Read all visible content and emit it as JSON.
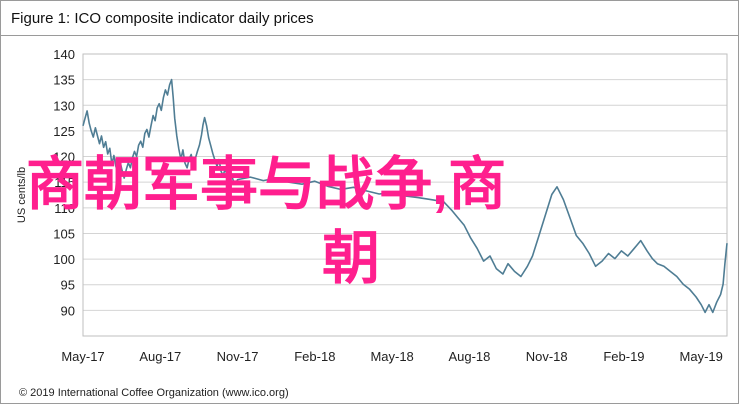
{
  "title": "Figure 1: ICO composite indicator daily prices",
  "footer": "© 2019 International Coffee Organization (www.ico.org)",
  "overlay_text": {
    "line1": "商朝军事与战争,商",
    "line2": "朝",
    "color": "#ff1f8e"
  },
  "chart_data": {
    "type": "line",
    "title": "Figure 1: ICO composite indicator daily prices",
    "xlabel": "",
    "ylabel": "US cents/lb",
    "ylim": [
      85,
      140
    ],
    "yticks": [
      90,
      95,
      100,
      105,
      110,
      115,
      120,
      125,
      130,
      135,
      140
    ],
    "xticks": [
      {
        "label": "May-17",
        "t": 0
      },
      {
        "label": "Aug-17",
        "t": 3
      },
      {
        "label": "Nov-17",
        "t": 6
      },
      {
        "label": "Feb-18",
        "t": 9
      },
      {
        "label": "May-18",
        "t": 12
      },
      {
        "label": "Aug-18",
        "t": 15
      },
      {
        "label": "Nov-18",
        "t": 18
      },
      {
        "label": "Feb-19",
        "t": 21
      },
      {
        "label": "May-19",
        "t": 24
      }
    ],
    "grid": true,
    "line_color": "#4f7d94",
    "series": [
      {
        "points": [
          [
            0.0,
            126.0
          ],
          [
            0.08,
            127.5
          ],
          [
            0.16,
            128.9
          ],
          [
            0.24,
            126.5
          ],
          [
            0.32,
            125.0
          ],
          [
            0.4,
            123.8
          ],
          [
            0.48,
            125.6
          ],
          [
            0.56,
            124.1
          ],
          [
            0.64,
            122.5
          ],
          [
            0.72,
            124.0
          ],
          [
            0.8,
            121.8
          ],
          [
            0.88,
            122.9
          ],
          [
            0.96,
            120.5
          ],
          [
            1.04,
            121.6
          ],
          [
            1.12,
            118.5
          ],
          [
            1.2,
            120.2
          ],
          [
            1.28,
            118.0
          ],
          [
            1.36,
            117.0
          ],
          [
            1.44,
            119.0
          ],
          [
            1.52,
            117.2
          ],
          [
            1.6,
            115.8
          ],
          [
            1.68,
            117.5
          ],
          [
            1.76,
            118.8
          ],
          [
            1.84,
            117.8
          ],
          [
            1.92,
            119.8
          ],
          [
            2.0,
            121.0
          ],
          [
            2.08,
            120.0
          ],
          [
            2.16,
            122.2
          ],
          [
            2.24,
            123.0
          ],
          [
            2.32,
            121.8
          ],
          [
            2.4,
            124.5
          ],
          [
            2.48,
            125.3
          ],
          [
            2.56,
            123.8
          ],
          [
            2.64,
            126.0
          ],
          [
            2.72,
            128.0
          ],
          [
            2.8,
            127.0
          ],
          [
            2.88,
            129.5
          ],
          [
            2.96,
            130.3
          ],
          [
            3.04,
            129.0
          ],
          [
            3.12,
            131.5
          ],
          [
            3.2,
            133.0
          ],
          [
            3.28,
            132.0
          ],
          [
            3.36,
            134.0
          ],
          [
            3.44,
            135.0
          ],
          [
            3.5,
            131.5
          ],
          [
            3.56,
            127.5
          ],
          [
            3.64,
            124.0
          ],
          [
            3.72,
            121.5
          ],
          [
            3.8,
            119.5
          ],
          [
            3.88,
            121.3
          ],
          [
            3.96,
            118.7
          ],
          [
            4.04,
            117.8
          ],
          [
            4.12,
            119.5
          ],
          [
            4.2,
            120.4
          ],
          [
            4.28,
            118.3
          ],
          [
            4.36,
            119.6
          ],
          [
            4.44,
            121.0
          ],
          [
            4.52,
            122.2
          ],
          [
            4.6,
            124.2
          ],
          [
            4.66,
            126.2
          ],
          [
            4.72,
            127.6
          ],
          [
            4.8,
            126.0
          ],
          [
            4.88,
            123.6
          ],
          [
            4.96,
            122.1
          ],
          [
            5.04,
            120.6
          ],
          [
            5.12,
            119.3
          ],
          [
            5.2,
            118.1
          ],
          [
            5.28,
            119.4
          ],
          [
            5.36,
            117.1
          ],
          [
            5.44,
            116.3
          ],
          [
            5.52,
            117.6
          ],
          [
            5.6,
            116.1
          ],
          [
            5.68,
            115.3
          ],
          [
            5.76,
            116.6
          ],
          [
            5.84,
            115.2
          ],
          [
            5.92,
            114.6
          ],
          [
            6.0,
            115.5
          ],
          [
            6.5,
            116.0
          ],
          [
            7.0,
            115.3
          ],
          [
            7.5,
            115.8
          ],
          [
            8.0,
            115.0
          ],
          [
            8.5,
            114.6
          ],
          [
            9.0,
            115.2
          ],
          [
            9.5,
            114.2
          ],
          [
            10.0,
            113.6
          ],
          [
            10.5,
            114.0
          ],
          [
            11.0,
            113.3
          ],
          [
            11.5,
            112.7
          ],
          [
            12.0,
            113.0
          ],
          [
            12.5,
            112.3
          ],
          [
            13.0,
            112.0
          ],
          [
            13.5,
            111.6
          ],
          [
            14.0,
            111.2
          ],
          [
            14.3,
            109.6
          ],
          [
            14.55,
            108.1
          ],
          [
            14.8,
            106.6
          ],
          [
            15.05,
            104.1
          ],
          [
            15.3,
            102.1
          ],
          [
            15.55,
            99.6
          ],
          [
            15.8,
            100.6
          ],
          [
            16.05,
            98.1
          ],
          [
            16.3,
            97.1
          ],
          [
            16.5,
            99.1
          ],
          [
            16.75,
            97.6
          ],
          [
            17.0,
            96.6
          ],
          [
            17.25,
            98.6
          ],
          [
            17.45,
            100.6
          ],
          [
            17.7,
            104.6
          ],
          [
            17.95,
            108.6
          ],
          [
            18.2,
            112.6
          ],
          [
            18.4,
            114.1
          ],
          [
            18.65,
            111.6
          ],
          [
            18.9,
            108.1
          ],
          [
            19.15,
            104.6
          ],
          [
            19.4,
            103.1
          ],
          [
            19.65,
            101.1
          ],
          [
            19.9,
            98.6
          ],
          [
            20.15,
            99.6
          ],
          [
            20.4,
            101.1
          ],
          [
            20.65,
            100.1
          ],
          [
            20.9,
            101.6
          ],
          [
            21.15,
            100.6
          ],
          [
            21.4,
            102.1
          ],
          [
            21.65,
            103.6
          ],
          [
            21.9,
            101.6
          ],
          [
            22.1,
            100.1
          ],
          [
            22.3,
            99.1
          ],
          [
            22.55,
            98.6
          ],
          [
            22.8,
            97.6
          ],
          [
            23.05,
            96.6
          ],
          [
            23.3,
            95.1
          ],
          [
            23.55,
            94.1
          ],
          [
            23.8,
            92.6
          ],
          [
            24.0,
            91.1
          ],
          [
            24.15,
            89.6
          ],
          [
            24.3,
            91.1
          ],
          [
            24.45,
            89.6
          ],
          [
            24.6,
            91.6
          ],
          [
            24.75,
            93.1
          ],
          [
            24.85,
            95.1
          ],
          [
            24.92,
            99.1
          ],
          [
            25.0,
            103.1
          ]
        ]
      }
    ]
  }
}
